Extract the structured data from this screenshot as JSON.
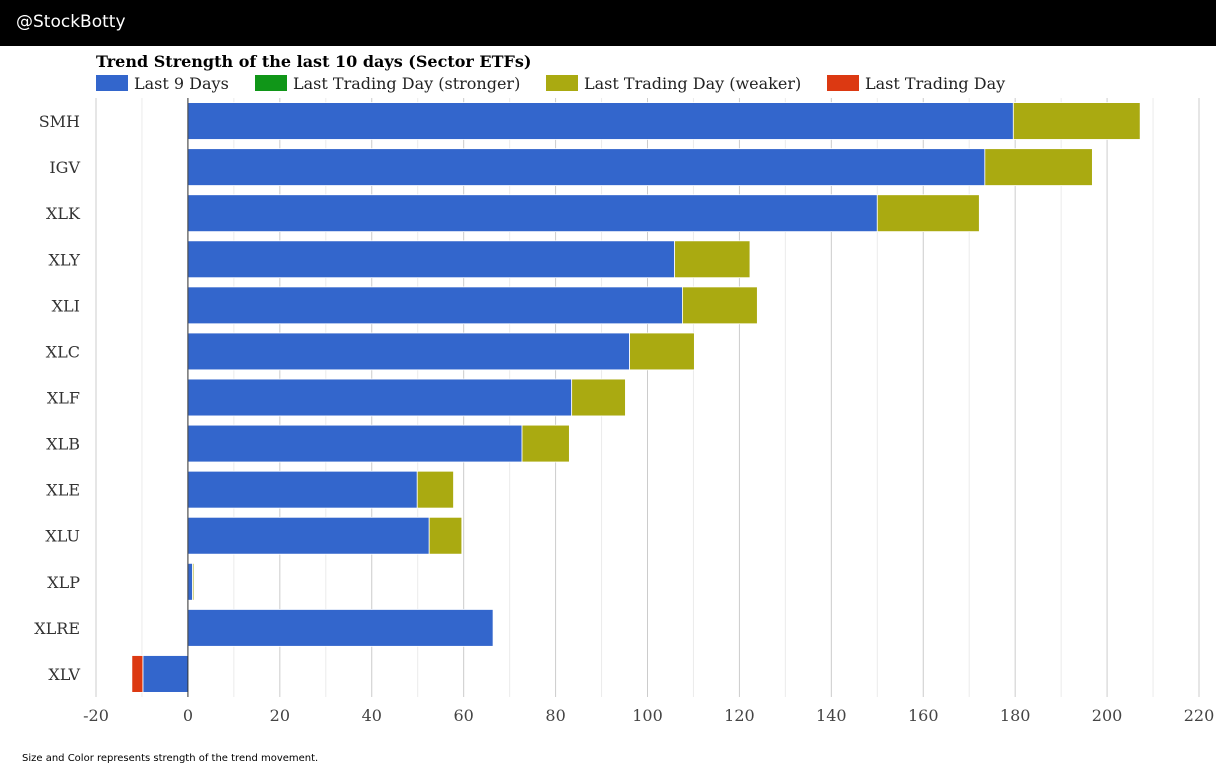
{
  "header": {
    "handle": "@StockBotty"
  },
  "footnote": "Size and Color represents strength of the trend movement.",
  "chart_data": {
    "type": "bar",
    "orientation": "horizontal",
    "stacked": true,
    "title": "Trend Strength of the last 10 days (Sector ETFs)",
    "xlabel": "",
    "ylabel": "",
    "xlim": [
      -20,
      220
    ],
    "xticks": [
      -20,
      0,
      20,
      40,
      60,
      80,
      100,
      120,
      140,
      160,
      180,
      200,
      220
    ],
    "grid": true,
    "legend_position": "top-left",
    "categories": [
      "SMH",
      "IGV",
      "XLK",
      "XLY",
      "XLI",
      "XLC",
      "XLF",
      "XLB",
      "XLE",
      "XLU",
      "XLP",
      "XLRE",
      "XLV"
    ],
    "series": [
      {
        "name": "Last 9 Days",
        "color": "#3366cc",
        "values": [
          179.6,
          173.4,
          150.0,
          105.9,
          107.6,
          96.1,
          83.5,
          72.7,
          49.9,
          52.5,
          1.0,
          66.4,
          -9.8
        ]
      },
      {
        "name": "Last Trading Day (stronger)",
        "color": "#109618",
        "values": [
          0,
          0,
          0,
          0,
          0,
          0,
          0,
          0,
          0,
          0,
          0,
          0,
          0
        ]
      },
      {
        "name": "Last Trading Day (weaker)",
        "color": "#aaaa11",
        "values": [
          27.6,
          23.4,
          22.2,
          16.4,
          16.3,
          14.1,
          11.7,
          10.3,
          7.9,
          7.1,
          0.3,
          0,
          0
        ]
      },
      {
        "name": "Last Trading Day",
        "color": "#dc3912",
        "values": [
          0,
          0,
          0,
          0,
          0,
          0,
          0,
          0,
          0,
          0,
          0,
          0,
          -2.4
        ]
      }
    ]
  }
}
